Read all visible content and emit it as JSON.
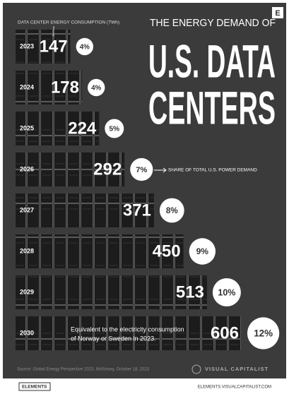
{
  "chart_data": {
    "type": "bar",
    "title_small": "THE ENERGY DEMAND OF",
    "title_lines": [
      "U.S. DATA",
      "CENTERS"
    ],
    "axis_label": "DATA CENTER ENERGY CONSUMPTION (TWh)",
    "share_note": "SHARE OF TOTAL U.S. POWER DEMAND",
    "categories": [
      "2023",
      "2024",
      "2025",
      "2026",
      "2027",
      "2028",
      "2029",
      "2030"
    ],
    "values": [
      147,
      178,
      224,
      292,
      371,
      450,
      513,
      606
    ],
    "shares": [
      4,
      4,
      5,
      7,
      8,
      9,
      10,
      12
    ],
    "share_labels": [
      "4%",
      "4%",
      "5%",
      "7%",
      "8%",
      "9%",
      "10%",
      "12%"
    ],
    "annotation_lines": [
      "Equivalent to the electricity consumption",
      "of Norway or Sweden in 2023."
    ],
    "source": "Source: Global Energy Perspective 2023, McKinsey, October 18, 2023",
    "brand": "VISUAL CAPITALIST",
    "logo": "E",
    "footer_left": "ELEMENTS",
    "footer_right": "ELEMENTS.VISUALCAPITALIST.COM"
  }
}
